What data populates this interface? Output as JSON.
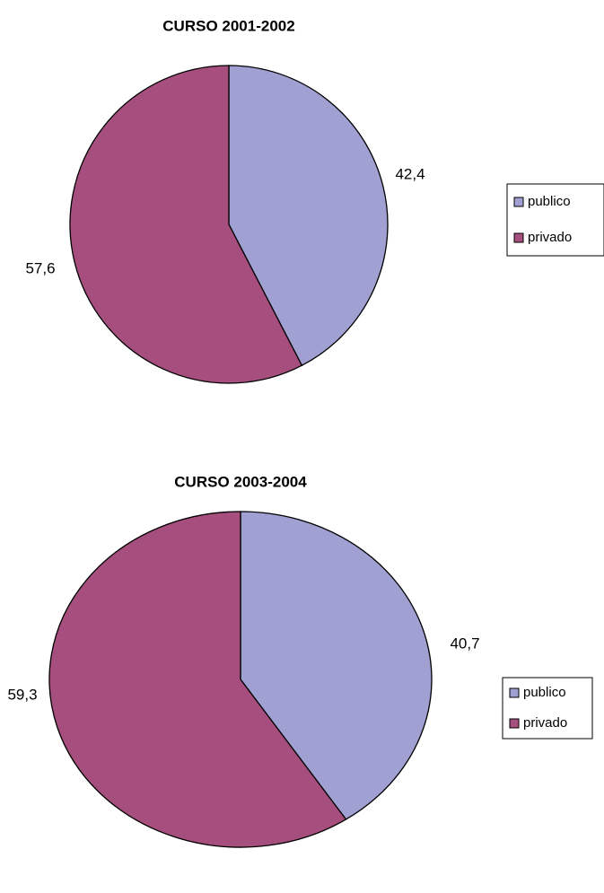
{
  "chart_data": [
    {
      "type": "pie",
      "title": "CURSO 2001-2002",
      "categories": [
        "publico",
        "privado"
      ],
      "values": [
        42.4,
        57.6
      ],
      "value_labels": [
        "42,4",
        "57,6"
      ],
      "colors": [
        "#a0a0d2",
        "#a64f7e"
      ]
    },
    {
      "type": "pie",
      "title": "CURSO 2003-2004",
      "categories": [
        "publico",
        "privado"
      ],
      "values": [
        40.7,
        59.3
      ],
      "value_labels": [
        "40,7",
        "59,3"
      ],
      "colors": [
        "#a0a0d2",
        "#a64f7e"
      ]
    }
  ]
}
